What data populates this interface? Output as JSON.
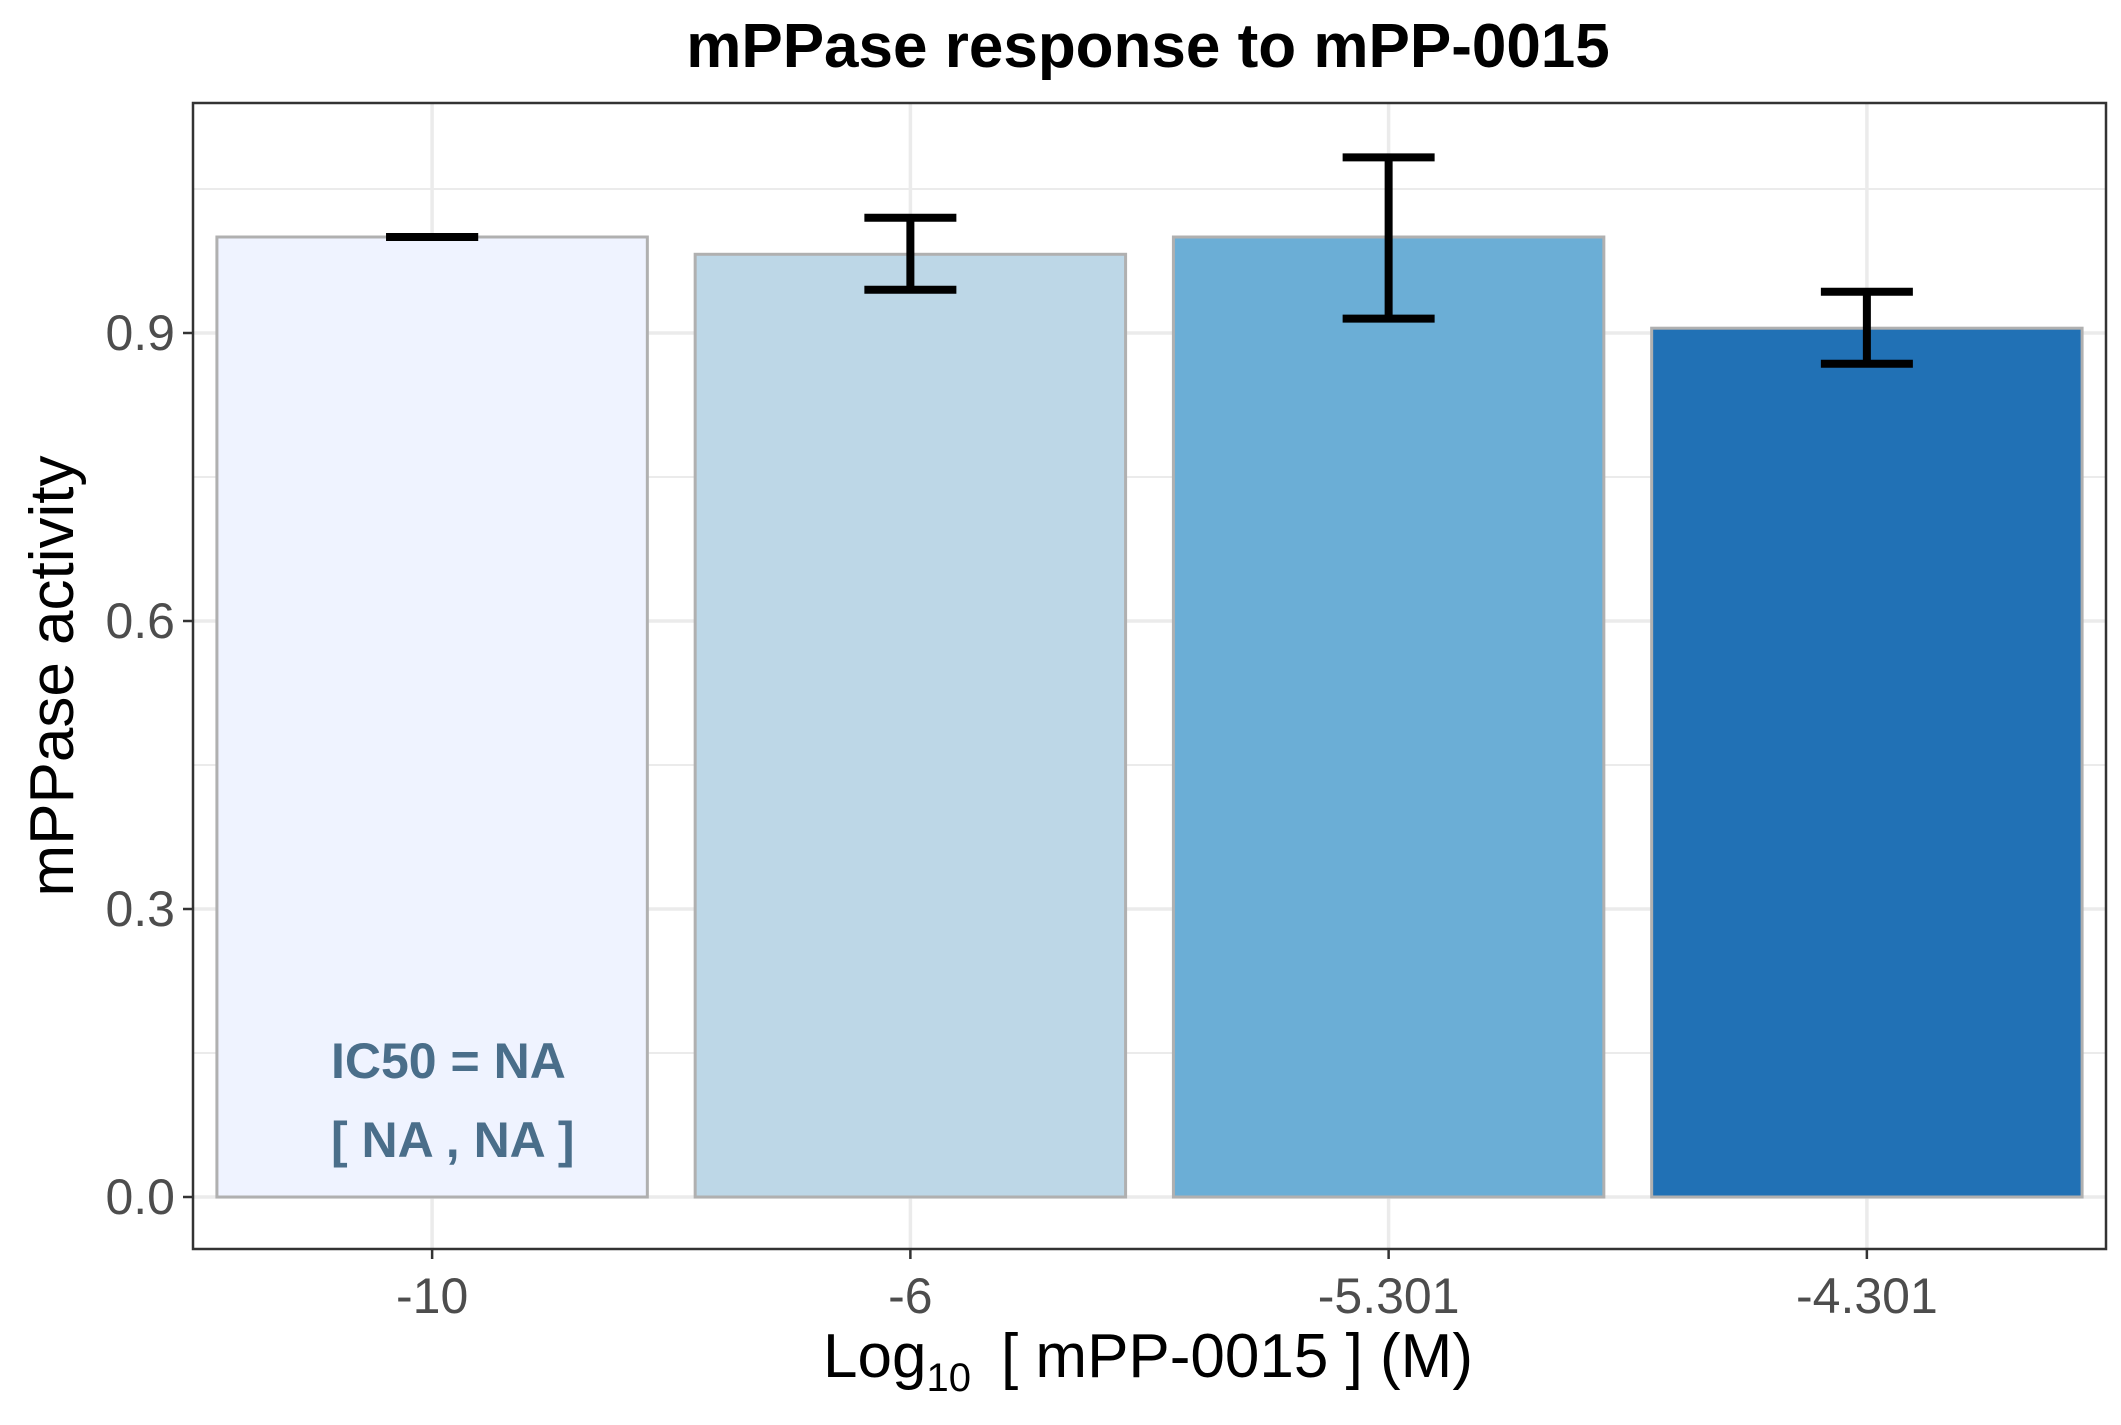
{
  "chart_data": {
    "type": "bar",
    "title": "mPPase response to mPP-0015",
    "xlabel": {
      "prefix": "Log",
      "subscript": "10",
      "suffix": "[ mPP-0015 ] (M)"
    },
    "ylabel": "mPPase activity",
    "categories": [
      "-10",
      "-6",
      "-5.301",
      "-4.301"
    ],
    "values": [
      1.0,
      0.982,
      1.0,
      0.905
    ],
    "error_low": [
      1.0,
      0.945,
      0.915,
      0.868
    ],
    "error_high": [
      1.0,
      1.02,
      1.083,
      0.943
    ],
    "bar_colors": [
      "#eff3ff",
      "#bdd7e7",
      "#6baed6",
      "#2171b5"
    ],
    "ylim": [
      -0.053,
      1.13
    ],
    "yticks": [
      0.0,
      0.3,
      0.6,
      0.9
    ],
    "ytick_labels": [
      "0.0",
      "0.3",
      "0.6",
      "0.9"
    ],
    "grid": true,
    "annotation": {
      "line1": "IC50 = NA",
      "line2": "[ NA , NA ]",
      "color": "#4a6e8a"
    },
    "colors": {
      "bar_outline": "#b0b0b0",
      "gridline": "#ebebeb",
      "panel_border": "#333333",
      "errorbar": "#000000"
    }
  }
}
